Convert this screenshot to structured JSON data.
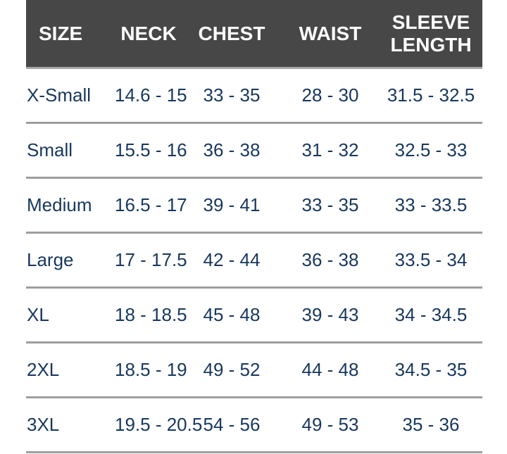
{
  "chart_data": {
    "type": "table",
    "columns": [
      "SIZE",
      "NECK",
      "CHEST",
      "WAIST",
      "SLEEVE LENGTH"
    ],
    "rows": [
      [
        "X-Small",
        "14.6 - 15",
        "33 - 35",
        "28 - 30",
        "31.5 - 32.5"
      ],
      [
        "Small",
        "15.5 - 16",
        "36 - 38",
        "31 - 32",
        "32.5 - 33"
      ],
      [
        "Medium",
        "16.5 - 17",
        "39 - 41",
        "33 - 35",
        "33 - 33.5"
      ],
      [
        "Large",
        "17 - 17.5",
        "42 - 44",
        "36 - 38",
        "33.5 - 34"
      ],
      [
        "XL",
        "18 - 18.5",
        "45 - 48",
        "39 - 43",
        "34 - 34.5"
      ],
      [
        "2XL",
        "18.5 - 19",
        "49 - 52",
        "44 - 48",
        "34.5 - 35"
      ],
      [
        "3XL",
        "19.5 - 20.5",
        "54 - 56",
        "49 - 53",
        "35 - 36"
      ]
    ],
    "layout": {
      "grid": "horizontal row dividers only",
      "header_position": "top"
    }
  },
  "style": {
    "page_bg": "#ffffff",
    "header_bg": "#474747",
    "header_text": "#ffffff",
    "header_divider": "#a6a6a6",
    "cell_text": "#17375e",
    "row_divider": "#9e9e9e"
  }
}
